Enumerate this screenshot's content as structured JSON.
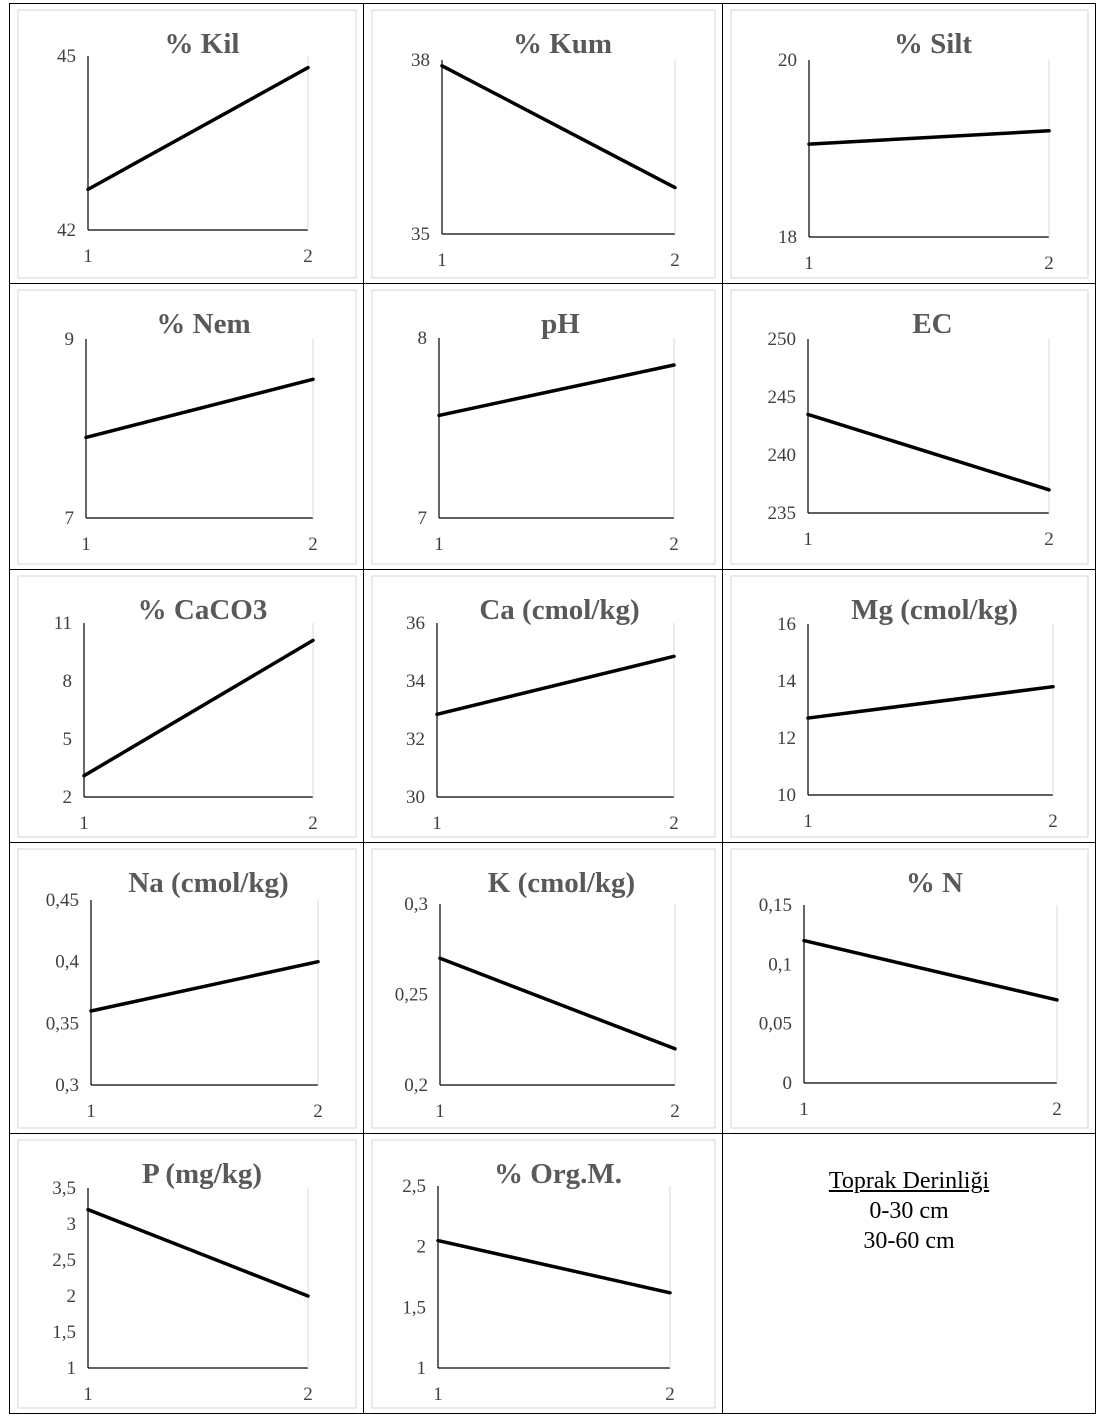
{
  "chart_data": [
    {
      "type": "line",
      "title": "% Kil",
      "x": [
        "1",
        "2"
      ],
      "values": [
        42.7,
        44.8
      ],
      "ylim": [
        42,
        45
      ],
      "yticks": [
        "42",
        "45"
      ]
    },
    {
      "type": "line",
      "title": "% Kum",
      "x": [
        "1",
        "2"
      ],
      "values": [
        37.9,
        35.8
      ],
      "ylim": [
        35,
        38
      ],
      "yticks": [
        "35",
        "38"
      ]
    },
    {
      "type": "line",
      "title": "% Silt",
      "x": [
        "1",
        "2"
      ],
      "values": [
        19.05,
        19.2
      ],
      "ylim": [
        18,
        20
      ],
      "yticks": [
        "18",
        "20"
      ]
    },
    {
      "type": "line",
      "title": "% Nem",
      "x": [
        "1",
        "2"
      ],
      "values": [
        7.9,
        8.55
      ],
      "ylim": [
        7,
        9
      ],
      "yticks": [
        "7",
        "9"
      ]
    },
    {
      "type": "line",
      "title": "pH",
      "x": [
        "1",
        "2"
      ],
      "values": [
        7.57,
        7.85
      ],
      "ylim": [
        7,
        8
      ],
      "yticks": [
        "7",
        "8"
      ]
    },
    {
      "type": "line",
      "title": "EC",
      "x": [
        "1",
        "2"
      ],
      "values": [
        243.5,
        237
      ],
      "ylim": [
        235,
        250
      ],
      "yticks": [
        "235",
        "240",
        "245",
        "250"
      ]
    },
    {
      "type": "line",
      "title": "% CaCO3",
      "x": [
        "1",
        "2"
      ],
      "values": [
        3.1,
        10.1
      ],
      "ylim": [
        2,
        11
      ],
      "yticks": [
        "2",
        "5",
        "8",
        "11"
      ]
    },
    {
      "type": "line",
      "title": "Ca  (cmol/kg)",
      "x": [
        "1",
        "2"
      ],
      "values": [
        32.85,
        34.85
      ],
      "ylim": [
        30,
        36
      ],
      "yticks": [
        "30",
        "32",
        "34",
        "36"
      ]
    },
    {
      "type": "line",
      "title": "Mg  (cmol/kg)",
      "x": [
        "1",
        "2"
      ],
      "values": [
        12.7,
        13.8
      ],
      "ylim": [
        10,
        16
      ],
      "yticks": [
        "10",
        "12",
        "14",
        "16"
      ]
    },
    {
      "type": "line",
      "title": "Na  (cmol/kg)",
      "x": [
        "1",
        "2"
      ],
      "values": [
        0.36,
        0.4
      ],
      "ylim": [
        0.3,
        0.45
      ],
      "yticks": [
        "0,3",
        "0,35",
        "0,4",
        "0,45"
      ]
    },
    {
      "type": "line",
      "title": "K  (cmol/kg)",
      "x": [
        "1",
        "2"
      ],
      "values": [
        0.27,
        0.22
      ],
      "ylim": [
        0.2,
        0.3
      ],
      "yticks": [
        "0,2",
        "0,25",
        "0,3"
      ]
    },
    {
      "type": "line",
      "title": "% N",
      "x": [
        "1",
        "2"
      ],
      "values": [
        0.12,
        0.07
      ],
      "ylim": [
        0,
        0.15
      ],
      "yticks": [
        "0",
        "0,05",
        "0,1",
        "0,15"
      ]
    },
    {
      "type": "line",
      "title": "P (mg/kg)",
      "x": [
        "1",
        "2"
      ],
      "values": [
        3.2,
        2.0
      ],
      "ylim": [
        1,
        3.5
      ],
      "yticks": [
        "1",
        "1,5",
        "2",
        "2,5",
        "3",
        "3,5"
      ]
    },
    {
      "type": "line",
      "title": "% Org.M.",
      "x": [
        "1",
        "2"
      ],
      "values": [
        2.05,
        1.62
      ],
      "ylim": [
        1,
        2.5
      ],
      "yticks": [
        "1",
        "1,5",
        "2",
        "2,5"
      ]
    }
  ],
  "legend": {
    "heading": "Toprak Derinliği",
    "items": [
      "0-30 cm",
      "30-60 cm"
    ]
  }
}
